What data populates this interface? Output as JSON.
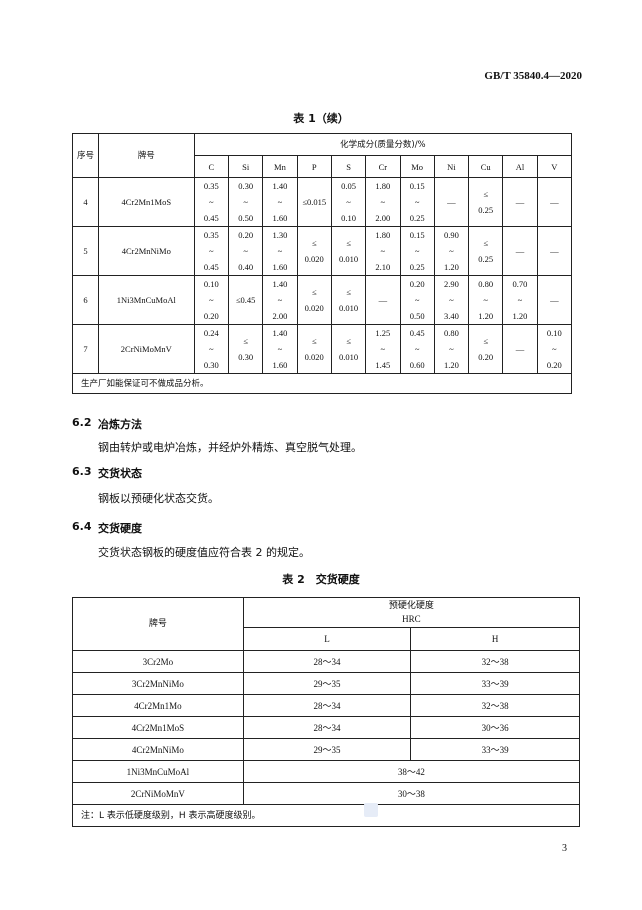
{
  "header": {
    "doc_id": "GB/T 35840.4—2020"
  },
  "table1": {
    "caption": "表 1（续）",
    "col_seq": "序号",
    "col_grade": "牌号",
    "col_group": "化学成分(质量分数)/%",
    "elements": [
      "C",
      "Si",
      "Mn",
      "P",
      "S",
      "Cr",
      "Mo",
      "Ni",
      "Cu",
      "Al",
      "V"
    ],
    "rows": [
      {
        "seq": "4",
        "grade": "4Cr2Mn1MoS",
        "cells": [
          [
            "0.35",
            "~",
            "0.45"
          ],
          [
            "0.30",
            "~",
            "0.50"
          ],
          [
            "1.40",
            "~",
            "1.60"
          ],
          [
            "≤0.015"
          ],
          [
            "0.05",
            "~",
            "0.10"
          ],
          [
            "1.80",
            "~",
            "2.00"
          ],
          [
            "0.15",
            "~",
            "0.25"
          ],
          [
            "—"
          ],
          [
            "≤",
            "0.25"
          ],
          [
            "—"
          ],
          [
            "—"
          ]
        ]
      },
      {
        "seq": "5",
        "grade": "4Cr2MnNiMo",
        "cells": [
          [
            "0.35",
            "~",
            "0.45"
          ],
          [
            "0.20",
            "~",
            "0.40"
          ],
          [
            "1.30",
            "~",
            "1.60"
          ],
          [
            "≤",
            "0.020"
          ],
          [
            "≤",
            "0.010"
          ],
          [
            "1.80",
            "~",
            "2.10"
          ],
          [
            "0.15",
            "~",
            "0.25"
          ],
          [
            "0.90",
            "~",
            "1.20"
          ],
          [
            "≤",
            "0.25"
          ],
          [
            "—"
          ],
          [
            "—"
          ]
        ]
      },
      {
        "seq": "6",
        "grade": "1Ni3MnCuMoAl",
        "cells": [
          [
            "0.10",
            "~",
            "0.20"
          ],
          [
            "≤0.45"
          ],
          [
            "1.40",
            "~",
            "2.00"
          ],
          [
            "≤",
            "0.020"
          ],
          [
            "≤",
            "0.010"
          ],
          [
            "—"
          ],
          [
            "0.20",
            "~",
            "0.50"
          ],
          [
            "2.90",
            "~",
            "3.40"
          ],
          [
            "0.80",
            "~",
            "1.20"
          ],
          [
            "0.70",
            "~",
            "1.20"
          ],
          [
            "—"
          ]
        ]
      },
      {
        "seq": "7",
        "grade": "2CrNiMoMnV",
        "cells": [
          [
            "0.24",
            "~",
            "0.30"
          ],
          [
            "≤",
            "0.30"
          ],
          [
            "1.40",
            "~",
            "1.60"
          ],
          [
            "≤",
            "0.020"
          ],
          [
            "≤",
            "0.010"
          ],
          [
            "1.25",
            "~",
            "1.45"
          ],
          [
            "0.45",
            "~",
            "0.60"
          ],
          [
            "0.80",
            "~",
            "1.20"
          ],
          [
            "≤",
            "0.20"
          ],
          [
            "—"
          ],
          [
            "0.10",
            "~",
            "0.20"
          ]
        ]
      }
    ],
    "note": "生产厂如能保证可不做成品分析。"
  },
  "sections": [
    {
      "num": "6.2",
      "title": "冶炼方法",
      "body": "钢由转炉或电炉冶炼，并经炉外精炼、真空脱气处理。"
    },
    {
      "num": "6.3",
      "title": "交货状态",
      "body": "钢板以预硬化状态交货。"
    },
    {
      "num": "6.4",
      "title": "交货硬度",
      "body": "交货状态钢板的硬度值应符合表 2 的规定。"
    }
  ],
  "table2": {
    "caption": "表 2　交货硬度",
    "col_grade": "牌号",
    "col_group": "预硬化硬度",
    "col_unit": "HRC",
    "col_L": "L",
    "col_H": "H",
    "rows": [
      {
        "grade": "3Cr2Mo",
        "L": "28～34",
        "H": "32～38"
      },
      {
        "grade": "3Cr2MnNiMo",
        "L": "29～35",
        "H": "33～39"
      },
      {
        "grade": "4Cr2Mn1Mo",
        "L": "28～34",
        "H": "32～38"
      },
      {
        "grade": "4Cr2Mn1MoS",
        "L": "28～34",
        "H": "30～36"
      },
      {
        "grade": "4Cr2MnNiMo",
        "L": "29～35",
        "H": "33～39"
      },
      {
        "grade": "1Ni3MnCuMoAl",
        "merged": "38～42"
      },
      {
        "grade": "2CrNiMoMnV",
        "merged": "30～38"
      }
    ],
    "note": "注：L 表示低硬度级别，H 表示高硬度级别。"
  },
  "footer": {
    "page_number": "3"
  }
}
